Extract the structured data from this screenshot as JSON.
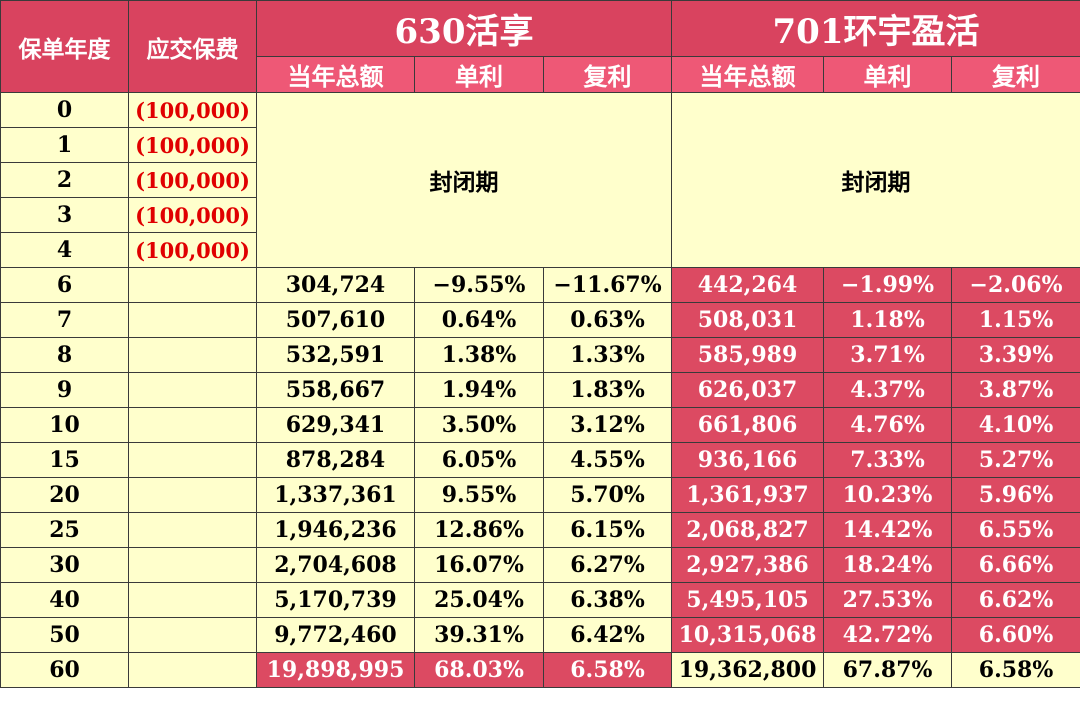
{
  "headers": {
    "year": "保单年度",
    "premium": "应交保费",
    "product_a": "630活享",
    "product_b": "701环宇盈活",
    "sub": [
      "当年总额",
      "单利",
      "复利"
    ]
  },
  "closed_label": "封闭期",
  "closed_rows": [
    {
      "year": "0",
      "premium": "(100,000)"
    },
    {
      "year": "1",
      "premium": "(100,000)"
    },
    {
      "year": "2",
      "premium": "(100,000)"
    },
    {
      "year": "3",
      "premium": "(100,000)"
    },
    {
      "year": "4",
      "premium": "(100,000)"
    }
  ],
  "rows": [
    {
      "year": "6",
      "a": [
        "304,724",
        "−9.55%",
        "−11.67%"
      ],
      "b": [
        "442,264",
        "−1.99%",
        "−2.06%"
      ]
    },
    {
      "year": "7",
      "a": [
        "507,610",
        "0.64%",
        "0.63%"
      ],
      "b": [
        "508,031",
        "1.18%",
        "1.15%"
      ]
    },
    {
      "year": "8",
      "a": [
        "532,591",
        "1.38%",
        "1.33%"
      ],
      "b": [
        "585,989",
        "3.71%",
        "3.39%"
      ]
    },
    {
      "year": "9",
      "a": [
        "558,667",
        "1.94%",
        "1.83%"
      ],
      "b": [
        "626,037",
        "4.37%",
        "3.87%"
      ]
    },
    {
      "year": "10",
      "a": [
        "629,341",
        "3.50%",
        "3.12%"
      ],
      "b": [
        "661,806",
        "4.76%",
        "4.10%"
      ]
    },
    {
      "year": "15",
      "a": [
        "878,284",
        "6.05%",
        "4.55%"
      ],
      "b": [
        "936,166",
        "7.33%",
        "5.27%"
      ]
    },
    {
      "year": "20",
      "a": [
        "1,337,361",
        "9.55%",
        "5.70%"
      ],
      "b": [
        "1,361,937",
        "10.23%",
        "5.96%"
      ]
    },
    {
      "year": "25",
      "a": [
        "1,946,236",
        "12.86%",
        "6.15%"
      ],
      "b": [
        "2,068,827",
        "14.42%",
        "6.55%"
      ]
    },
    {
      "year": "30",
      "a": [
        "2,704,608",
        "16.07%",
        "6.27%"
      ],
      "b": [
        "2,927,386",
        "18.24%",
        "6.66%"
      ]
    },
    {
      "year": "40",
      "a": [
        "5,170,739",
        "25.04%",
        "6.38%"
      ],
      "b": [
        "5,495,105",
        "27.53%",
        "6.62%"
      ]
    },
    {
      "year": "50",
      "a": [
        "9,772,460",
        "39.31%",
        "6.42%"
      ],
      "b": [
        "10,315,068",
        "42.72%",
        "6.60%"
      ]
    },
    {
      "year": "60",
      "a": [
        "19,898,995",
        "68.03%",
        "6.58%"
      ],
      "b": [
        "19,362,800",
        "67.87%",
        "6.58%"
      ]
    }
  ],
  "colors": {
    "header": "#d9435f",
    "subheader": "#ee5876",
    "cream": "#ffffcc",
    "highlight": "#dc4a62",
    "negative": "#e00000"
  }
}
